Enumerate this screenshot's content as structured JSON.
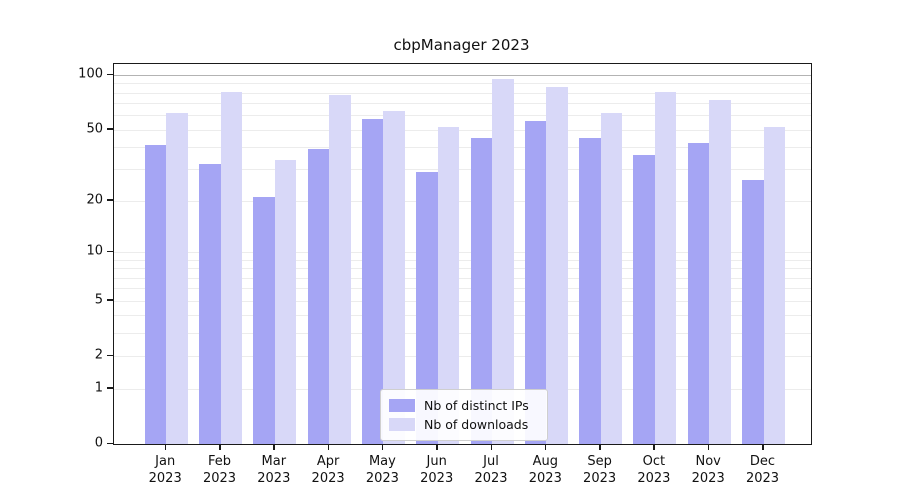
{
  "title": "cbpManager 2023",
  "colors": {
    "distinct_ips": "#a5a5f4",
    "downloads": "#d8d8f8",
    "grid_minor": "#ececec",
    "grid_major": "#b3b3b3",
    "axis": "#1a1a1a"
  },
  "legend": {
    "items": [
      {
        "label": "Nb of distinct IPs",
        "color": "#a5a5f4"
      },
      {
        "label": "Nb of downloads",
        "color": "#d8d8f8"
      }
    ]
  },
  "axes": {
    "y_tick_labels": [
      "100",
      "50",
      "20",
      "10",
      "5",
      "2",
      "1",
      "0"
    ],
    "x_year": "2023"
  },
  "chart_data": {
    "type": "bar",
    "title": "cbpManager 2023",
    "categories": [
      "Jan",
      "Feb",
      "Mar",
      "Apr",
      "May",
      "Jun",
      "Jul",
      "Aug",
      "Sep",
      "Oct",
      "Nov",
      "Dec"
    ],
    "category_year": "2023",
    "series": [
      {
        "name": "Nb of distinct IPs",
        "color": "#a5a5f4",
        "values": [
          41,
          32,
          21,
          39,
          57,
          29,
          45,
          56,
          45,
          36,
          42,
          26
        ]
      },
      {
        "name": "Nb of downloads",
        "color": "#d8d8f8",
        "values": [
          62,
          81,
          34,
          78,
          63,
          52,
          95,
          86,
          62,
          81,
          73,
          52
        ]
      }
    ],
    "xlabel": "",
    "ylabel": "",
    "y_scale": "log10(1+value)",
    "y_ticks": [
      0,
      1,
      2,
      5,
      10,
      20,
      50,
      100
    ],
    "y_grid_minor": [
      1,
      2,
      3,
      4,
      5,
      6,
      7,
      8,
      9,
      10,
      20,
      30,
      40,
      50,
      60,
      70,
      80,
      90
    ],
    "y_grid_major": [
      100
    ],
    "ylim": [
      0,
      115
    ],
    "grid": true,
    "legend_position": "lower center"
  }
}
